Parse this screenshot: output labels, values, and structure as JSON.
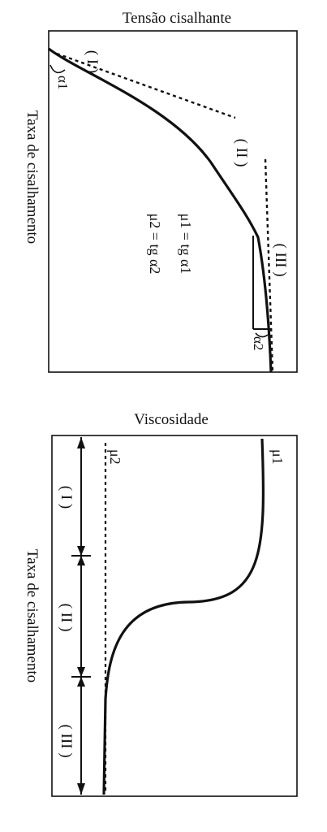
{
  "top_diagram": {
    "title": "Tensão cisalhante",
    "axis_label": "Taxa de cisalhamento",
    "region_labels": [
      "( I )",
      "( II )",
      "( III )"
    ],
    "angle_labels": [
      "α1",
      "α2"
    ],
    "equations": [
      "μ1 = tg α1",
      "μ2 = tg α2"
    ]
  },
  "bottom_diagram": {
    "title": "Viscosidade",
    "axis_label": "Taxa de cisalhamento",
    "region_labels": [
      "( I )",
      "( II )",
      "( III )"
    ],
    "curve_labels": [
      "μ1",
      "μ2"
    ]
  }
}
